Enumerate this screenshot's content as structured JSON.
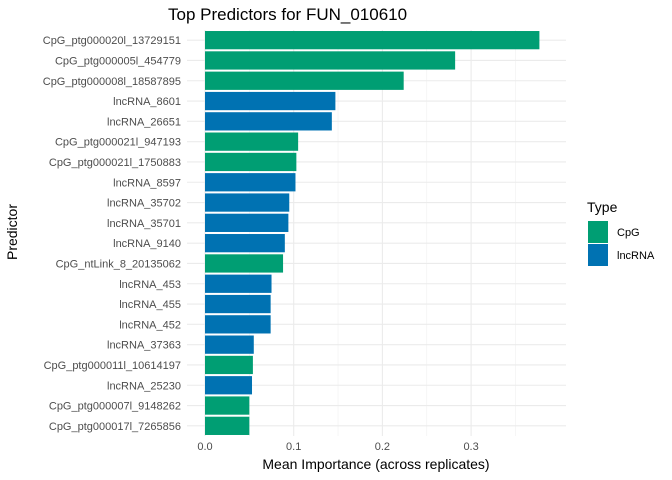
{
  "chart_data": {
    "type": "bar",
    "orientation": "horizontal",
    "title": "Top Predictors for FUN_010610",
    "xlabel": "Mean Importance (across replicates)",
    "ylabel": "Predictor",
    "xlim": [
      -0.01,
      0.4
    ],
    "x_ticks": [
      "0.0",
      "0.1",
      "0.2",
      "0.3"
    ],
    "grid": true,
    "legend": {
      "title": "Type",
      "position": "right",
      "entries": [
        {
          "label": "CpG",
          "color": "#009E73"
        },
        {
          "label": "lncRNA",
          "color": "#0072B2"
        }
      ]
    },
    "bars": [
      {
        "label": "CpG_ptg000020l_13729151",
        "value": 0.377,
        "type": "CpG"
      },
      {
        "label": "CpG_ptg000005l_454779",
        "value": 0.282,
        "type": "CpG"
      },
      {
        "label": "CpG_ptg000008l_18587895",
        "value": 0.224,
        "type": "CpG"
      },
      {
        "label": "lncRNA_8601",
        "value": 0.147,
        "type": "lncRNA"
      },
      {
        "label": "lncRNA_26651",
        "value": 0.143,
        "type": "lncRNA"
      },
      {
        "label": "CpG_ptg000021l_947193",
        "value": 0.105,
        "type": "CpG"
      },
      {
        "label": "CpG_ptg000021l_1750883",
        "value": 0.103,
        "type": "CpG"
      },
      {
        "label": "lncRNA_8597",
        "value": 0.102,
        "type": "lncRNA"
      },
      {
        "label": "lncRNA_35702",
        "value": 0.095,
        "type": "lncRNA"
      },
      {
        "label": "lncRNA_35701",
        "value": 0.094,
        "type": "lncRNA"
      },
      {
        "label": "lncRNA_9140",
        "value": 0.09,
        "type": "lncRNA"
      },
      {
        "label": "CpG_ntLink_8_20135062",
        "value": 0.088,
        "type": "CpG"
      },
      {
        "label": "lncRNA_453",
        "value": 0.075,
        "type": "lncRNA"
      },
      {
        "label": "lncRNA_455",
        "value": 0.074,
        "type": "lncRNA"
      },
      {
        "label": "lncRNA_452",
        "value": 0.074,
        "type": "lncRNA"
      },
      {
        "label": "lncRNA_37363",
        "value": 0.055,
        "type": "lncRNA"
      },
      {
        "label": "CpG_ptg000011l_10614197",
        "value": 0.054,
        "type": "CpG"
      },
      {
        "label": "lncRNA_25230",
        "value": 0.053,
        "type": "lncRNA"
      },
      {
        "label": "CpG_ptg000007l_9148262",
        "value": 0.05,
        "type": "CpG"
      },
      {
        "label": "CpG_ptg000017l_7265856",
        "value": 0.05,
        "type": "CpG"
      }
    ]
  }
}
